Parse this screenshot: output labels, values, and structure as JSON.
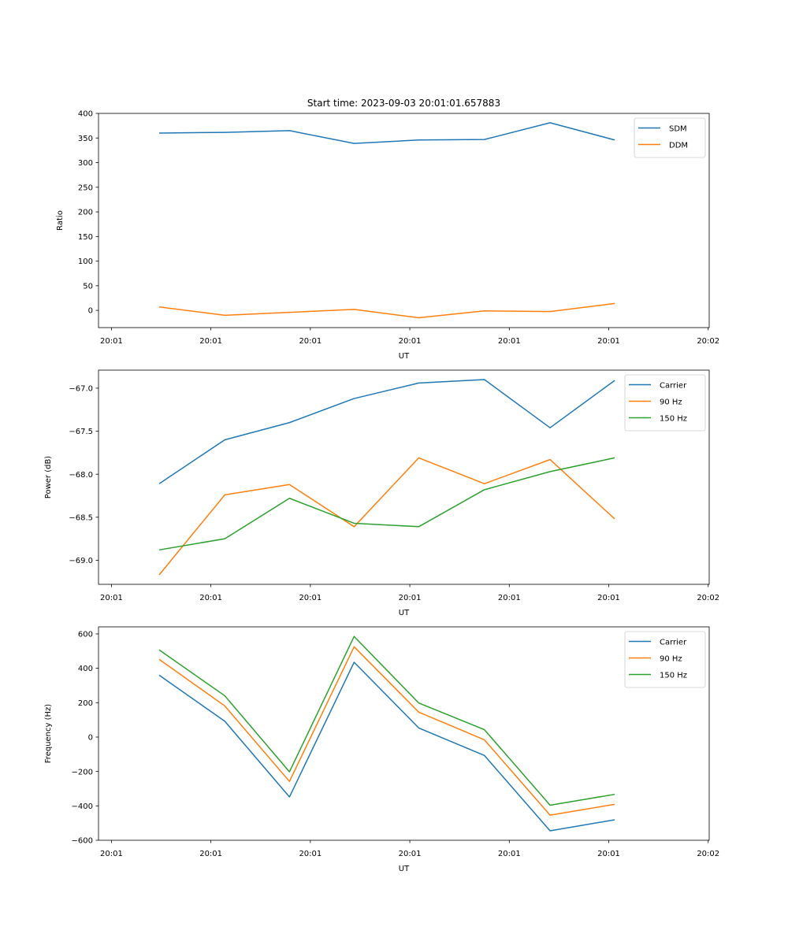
{
  "figure": {
    "title": "Start time: 2023-09-03 20:01:01.657883"
  },
  "chart_data": [
    {
      "type": "line",
      "title": "Start time: 2023-09-03 20:01:01.657883",
      "xlabel": "UT",
      "ylabel": "Ratio",
      "x_unit": "seconds after 20:01:00",
      "x": [
        4.8,
        11.4,
        17.9,
        24.4,
        30.9,
        37.5,
        44.1,
        50.6
      ],
      "xlim": [
        -1.3,
        60.1
      ],
      "xticks": [
        0,
        10,
        20,
        30,
        40,
        50,
        60
      ],
      "xtick_labels": [
        "20:01",
        "20:01",
        "20:01",
        "20:01",
        "20:01",
        "20:01",
        "20:02"
      ],
      "ylim": [
        -35,
        400
      ],
      "yticks": [
        0,
        50,
        100,
        150,
        200,
        250,
        300,
        350,
        400
      ],
      "ytick_labels": [
        "0",
        "50",
        "100",
        "150",
        "200",
        "250",
        "300",
        "350",
        "400"
      ],
      "grid": false,
      "legend_position": "top-right",
      "series": [
        {
          "name": "SDM",
          "color": "#1f77b4",
          "values": [
            360,
            361.5,
            365,
            339,
            346,
            347,
            381,
            346
          ]
        },
        {
          "name": "DDM",
          "color": "#ff7f0e",
          "values": [
            7,
            -10,
            -4,
            2,
            -15,
            -1,
            -2.5,
            14
          ]
        }
      ]
    },
    {
      "type": "line",
      "title": "",
      "xlabel": "UT",
      "ylabel": "Power (dB)",
      "x_unit": "seconds after 20:01:00",
      "x": [
        4.8,
        11.4,
        17.9,
        24.4,
        30.9,
        37.5,
        44.1,
        50.6
      ],
      "xlim": [
        -1.3,
        60.1
      ],
      "xticks": [
        0,
        10,
        20,
        30,
        40,
        50,
        60
      ],
      "xtick_labels": [
        "20:01",
        "20:01",
        "20:01",
        "20:01",
        "20:01",
        "20:01",
        "20:02"
      ],
      "ylim": [
        -69.28,
        -66.79
      ],
      "yticks": [
        -69.0,
        -68.5,
        -68.0,
        -67.5,
        -67.0
      ],
      "ytick_labels": [
        "−69.0",
        "−68.5",
        "−68.0",
        "−67.5",
        "−67.0"
      ],
      "grid": false,
      "legend_position": "top-right",
      "series": [
        {
          "name": "Carrier",
          "color": "#1f77b4",
          "values": [
            -68.11,
            -67.6,
            -67.4,
            -67.12,
            -66.94,
            -66.9,
            -67.46,
            -66.91
          ]
        },
        {
          "name": "90 Hz",
          "color": "#ff7f0e",
          "values": [
            -69.17,
            -68.24,
            -68.12,
            -68.61,
            -67.81,
            -68.11,
            -67.83,
            -68.52
          ]
        },
        {
          "name": "150 Hz",
          "color": "#2ca02c",
          "values": [
            -68.88,
            -68.75,
            -68.28,
            -68.57,
            -68.61,
            -68.18,
            -67.97,
            -67.81
          ]
        }
      ]
    },
    {
      "type": "line",
      "title": "",
      "xlabel": "UT",
      "ylabel": "Frequency (Hz)",
      "x_unit": "seconds after 20:01:00",
      "x": [
        4.8,
        11.4,
        17.9,
        24.4,
        30.9,
        37.5,
        44.1,
        50.6
      ],
      "xlim": [
        -1.3,
        60.1
      ],
      "xticks": [
        0,
        10,
        20,
        30,
        40,
        50,
        60
      ],
      "xtick_labels": [
        "20:01",
        "20:01",
        "20:01",
        "20:01",
        "20:01",
        "20:01",
        "20:02"
      ],
      "ylim": [
        -600,
        641
      ],
      "yticks": [
        -600,
        -400,
        -200,
        0,
        200,
        400,
        600
      ],
      "ytick_labels": [
        "−600",
        "−400",
        "−200",
        "0",
        "200",
        "400",
        "600"
      ],
      "grid": false,
      "legend_position": "top-right",
      "series": [
        {
          "name": "Carrier",
          "color": "#1f77b4",
          "values": [
            360,
            92,
            -348,
            435,
            53,
            -107,
            -545,
            -481
          ]
        },
        {
          "name": "90 Hz",
          "color": "#ff7f0e",
          "values": [
            452,
            181,
            -258,
            525,
            145,
            -16,
            -454,
            -391
          ]
        },
        {
          "name": "150 Hz",
          "color": "#2ca02c",
          "values": [
            507,
            240,
            -202,
            585,
            198,
            43,
            -396,
            -333
          ]
        }
      ]
    }
  ]
}
